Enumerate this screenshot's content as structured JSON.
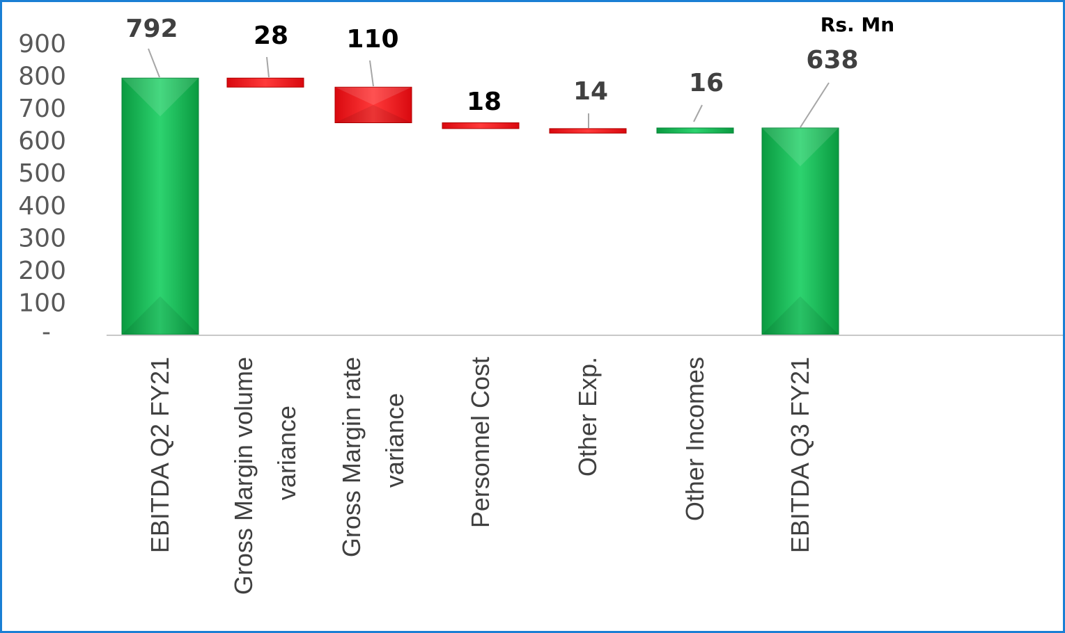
{
  "chart_data": {
    "type": "bar",
    "subtype": "waterfall",
    "unit_label": "Rs. Mn",
    "categories": [
      [
        "EBITDA Q2 FY21"
      ],
      [
        "Gross Margin volume",
        "variance"
      ],
      [
        "Gross Margin rate",
        "variance"
      ],
      [
        "Personnel Cost"
      ],
      [
        "Other Exp."
      ],
      [
        "Other Incomes"
      ],
      [
        "EBITDA Q3 FY21"
      ]
    ],
    "bars": [
      {
        "kind": "total",
        "base": 0,
        "value": 792,
        "label": "792",
        "label_color": "#404040"
      },
      {
        "kind": "decrease",
        "base": 764,
        "value": 28,
        "label": "28",
        "label_color": "#000000"
      },
      {
        "kind": "decrease",
        "base": 654,
        "value": 110,
        "label": "110",
        "label_color": "#000000"
      },
      {
        "kind": "decrease",
        "base": 636,
        "value": 18,
        "label": "18",
        "label_color": "#000000"
      },
      {
        "kind": "decrease",
        "base": 622,
        "value": 14,
        "label": "14",
        "label_color": "#404040"
      },
      {
        "kind": "increase",
        "base": 622,
        "value": 16,
        "label": "16",
        "label_color": "#404040"
      },
      {
        "kind": "total",
        "base": 0,
        "value": 638,
        "label": "638",
        "label_color": "#404040"
      }
    ],
    "ylim": [
      0,
      900
    ],
    "yticks": [
      0,
      100,
      200,
      300,
      400,
      500,
      600,
      700,
      800,
      900
    ],
    "ytick_labels": [
      "-",
      "100",
      "200",
      "300",
      "400",
      "500",
      "600",
      "700",
      "800",
      "900"
    ],
    "colors": {
      "total": "#12b04f",
      "increase": "#12b04f",
      "decrease": "#e8161b",
      "axis": "#c8c8c8",
      "leader": "#a6a6a6",
      "border": "#1a7fd4"
    },
    "legend": "none",
    "grid": false
  }
}
